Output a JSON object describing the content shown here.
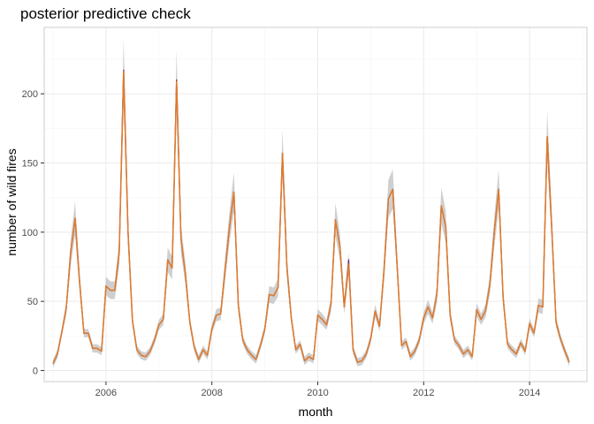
{
  "chart_data": {
    "type": "line",
    "title": "posterior predictive check",
    "xlabel": "month",
    "ylabel": "number of wild fires",
    "x_start": "2005-01",
    "x_end": "2014-12",
    "xlim": [
      "2004-11",
      "2015-02"
    ],
    "ylim": [
      -8,
      248
    ],
    "x_ticks": [
      "2006",
      "2008",
      "2010",
      "2012",
      "2014"
    ],
    "y_ticks": [
      0,
      50,
      100,
      150,
      200
    ],
    "grid": true,
    "legend": "none",
    "colors": {
      "observed": "#5b2a86",
      "predicted": "#e07b2a",
      "interval": "#bfbfbf",
      "grid": "#ebebeb",
      "panel_border": "#cccccc"
    },
    "series": [
      {
        "role": "observed",
        "values": [
          5,
          12,
          28,
          45,
          85,
          110,
          65,
          27,
          27,
          16,
          16,
          14,
          61,
          58,
          58,
          85,
          217,
          100,
          36,
          15,
          11,
          10,
          14,
          22,
          33,
          37,
          80,
          74,
          210,
          95,
          70,
          35,
          17,
          8,
          15,
          11,
          30,
          40,
          41,
          73,
          104,
          129,
          47,
          22,
          15,
          11,
          8,
          18,
          30,
          55,
          54,
          60,
          157,
          75,
          38,
          15,
          19,
          7,
          10,
          8,
          40,
          37,
          33,
          48,
          109,
          90,
          46,
          80,
          15,
          6,
          7,
          12,
          23,
          43,
          32,
          72,
          124,
          131,
          75,
          18,
          21,
          10,
          14,
          22,
          38,
          46,
          38,
          55,
          119,
          104,
          40,
          22,
          18,
          12,
          15,
          10,
          44,
          37,
          43,
          62,
          100,
          131,
          53,
          19,
          15,
          12,
          20,
          14,
          34,
          27,
          47,
          46,
          169,
          105,
          35,
          23,
          14,
          6
        ]
      },
      {
        "role": "predicted",
        "values": [
          5,
          12,
          28,
          45,
          85,
          110,
          65,
          27,
          27,
          16,
          16,
          14,
          61,
          58,
          58,
          85,
          216,
          100,
          36,
          15,
          11,
          10,
          14,
          22,
          33,
          37,
          80,
          74,
          209,
          95,
          70,
          35,
          17,
          8,
          15,
          11,
          30,
          40,
          41,
          73,
          104,
          129,
          47,
          22,
          15,
          11,
          8,
          18,
          30,
          55,
          54,
          60,
          157,
          75,
          38,
          15,
          19,
          7,
          10,
          8,
          40,
          37,
          33,
          48,
          109,
          90,
          46,
          77,
          15,
          6,
          7,
          12,
          23,
          43,
          32,
          72,
          124,
          131,
          75,
          18,
          21,
          10,
          14,
          22,
          38,
          46,
          38,
          55,
          119,
          104,
          40,
          22,
          18,
          12,
          15,
          10,
          44,
          37,
          43,
          62,
          100,
          131,
          53,
          19,
          15,
          12,
          20,
          14,
          34,
          27,
          47,
          46,
          169,
          105,
          35,
          23,
          14,
          6
        ]
      }
    ]
  }
}
